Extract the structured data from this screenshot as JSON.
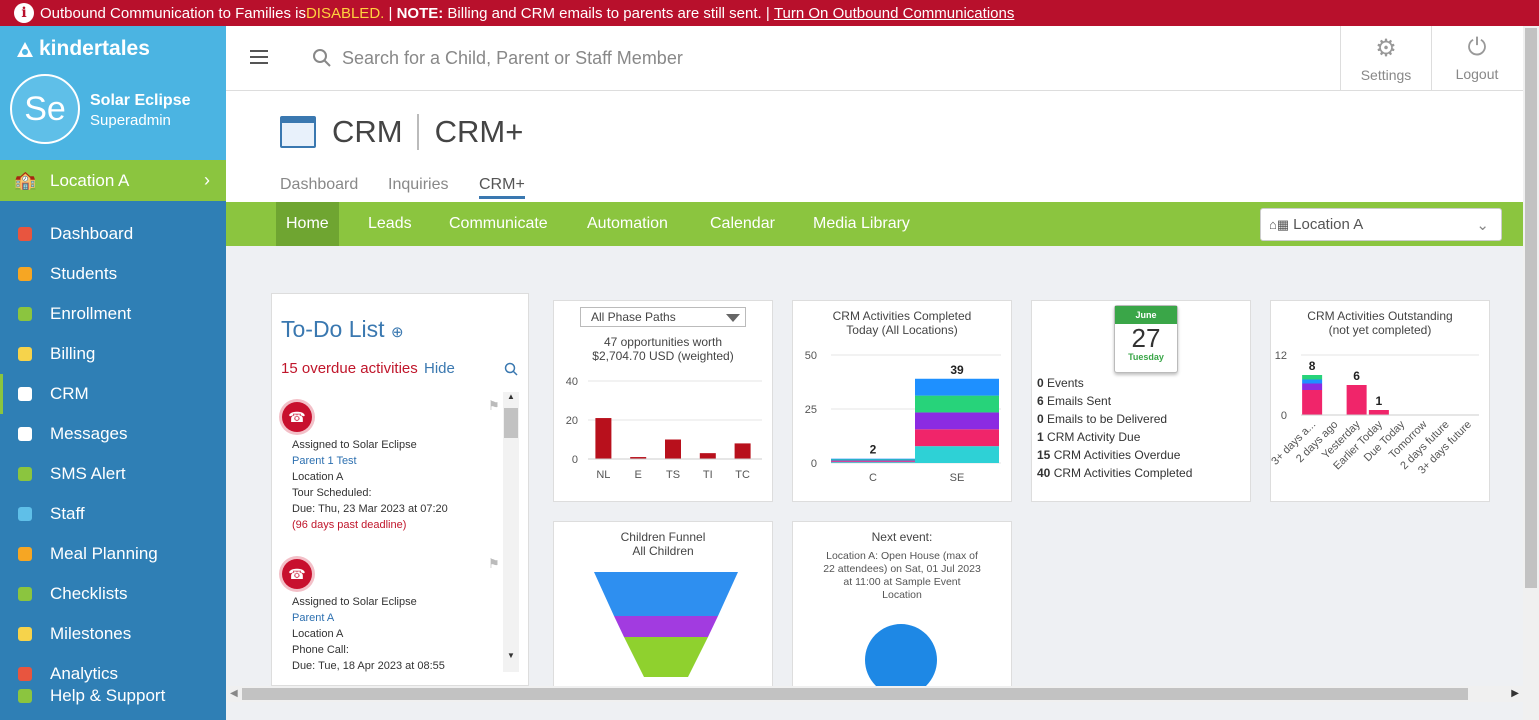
{
  "banner": {
    "part1": "Outbound Communication to Families is ",
    "disabled": "DISABLED.",
    "sep1": " | ",
    "note": "NOTE:",
    "part2": " Billing and CRM emails to parents are still sent. | ",
    "link": "Turn On Outbound Communications"
  },
  "brand": {
    "name": "kindertales"
  },
  "user": {
    "initials": "Se",
    "name": "Solar Eclipse",
    "role": "Superadmin"
  },
  "location": "Location A",
  "nav": [
    {
      "label": "Dashboard",
      "icon": "dashboard-icon",
      "color": "#e8553f"
    },
    {
      "label": "Students",
      "icon": "students-icon",
      "color": "#f6a623"
    },
    {
      "label": "Enrollment",
      "icon": "enrollment-icon",
      "color": "#8bc53f"
    },
    {
      "label": "Billing",
      "icon": "billing-icon",
      "color": "#f6d34b"
    },
    {
      "label": "CRM",
      "icon": "crm-icon",
      "color": "#ffffff"
    },
    {
      "label": "Messages",
      "icon": "messages-icon",
      "color": "#ffffff"
    },
    {
      "label": "SMS Alert",
      "icon": "sms-icon",
      "color": "#8bc53f"
    },
    {
      "label": "Staff",
      "icon": "staff-icon",
      "color": "#5fbfe8"
    },
    {
      "label": "Meal Planning",
      "icon": "meal-icon",
      "color": "#f6a623"
    },
    {
      "label": "Checklists",
      "icon": "checklist-icon",
      "color": "#8bc53f"
    },
    {
      "label": "Milestones",
      "icon": "star-icon",
      "color": "#f6d34b"
    },
    {
      "label": "Analytics",
      "icon": "analytics-icon",
      "color": "#e8553f"
    },
    {
      "label": "Help & Support",
      "icon": "help-icon",
      "color": "#8bc53f"
    }
  ],
  "search": {
    "placeholder": "Search for a Child, Parent or Staff Member"
  },
  "topbuttons": {
    "settings": "Settings",
    "logout": "Logout"
  },
  "page": {
    "title": "CRM",
    "subtitle": "CRM+"
  },
  "tabs": [
    "Dashboard",
    "Inquiries",
    "CRM+"
  ],
  "subnav": [
    "Home",
    "Leads",
    "Communicate",
    "Automation",
    "Calendar",
    "Media Library"
  ],
  "location_select": "Location A",
  "todo": {
    "title": "To-Do List",
    "overdue": "15 overdue activities",
    "hide": "Hide",
    "items": [
      {
        "assigned": "Assigned to Solar Eclipse",
        "parent": "Parent 1 Test",
        "location": "Location A",
        "type": "Tour Scheduled",
        "due": "Due: Thu, 23 Mar 2023 at 07:20",
        "late": "(96 days past deadline)"
      },
      {
        "assigned": "Assigned to Solar Eclipse",
        "parent": "Parent A",
        "location": "Location A",
        "type": "Phone Call",
        "due": "Due: Tue, 18 Apr 2023 at 08:55",
        "late": ""
      }
    ]
  },
  "phase_card": {
    "select": "All Phase Paths",
    "line1": "47 opportunities worth",
    "line2": "$2,704.70 USD (weighted)"
  },
  "completed_card": {
    "title1": "CRM Activities Completed",
    "title2": "Today (All Locations)"
  },
  "calendar_card": {
    "month": "June",
    "day": "27",
    "weekday": "Tuesday",
    "lines": [
      {
        "n": "0",
        "t": " Events"
      },
      {
        "n": "6",
        "t": " Emails Sent"
      },
      {
        "n": "0",
        "t": " Emails to be Delivered"
      },
      {
        "n": "1",
        "t": " CRM Activity Due"
      },
      {
        "n": "15",
        "t": " CRM Activities Overdue"
      },
      {
        "n": "40",
        "t": " CRM Activities Completed"
      }
    ]
  },
  "outstanding_card": {
    "title1": "CRM Activities Outstanding",
    "title2": "(not yet completed)"
  },
  "funnel_card": {
    "title1": "Children Funnel",
    "title2": "All Children"
  },
  "event_card": {
    "title": "Next event:",
    "text": [
      "Location A: Open House (max of",
      "22 attendees) on Sat, 01 Jul 2023",
      "at 11:00 at Sample Event",
      "Location"
    ]
  },
  "chart_data": [
    {
      "type": "bar",
      "categories": [
        "NL",
        "E",
        "TS",
        "TI",
        "TC"
      ],
      "values": [
        21,
        1,
        10,
        3,
        8
      ],
      "ylim": [
        0,
        40
      ],
      "yticks": [
        0,
        20,
        40
      ],
      "color": "#b8101c"
    },
    {
      "type": "bar",
      "stacked": true,
      "categories": [
        "C",
        "SE"
      ],
      "totals": [
        2,
        39
      ],
      "ylim": [
        0,
        50
      ],
      "yticks": [
        0,
        25,
        50
      ],
      "series_colors": [
        "#2ed1d6",
        "#f0256a",
        "#8b2be2",
        "#27d37a",
        "#1e90ff"
      ]
    },
    {
      "type": "bar",
      "stacked": true,
      "categories": [
        "3+ days a...",
        "2 days ago",
        "Yesterday",
        "Earlier Today",
        "Due Today",
        "Tomorrow",
        "2 days future",
        "3+ days future"
      ],
      "values": [
        8,
        0,
        6,
        1,
        0,
        0,
        0,
        0
      ],
      "ylim": [
        0,
        12
      ],
      "yticks": [
        0,
        12
      ],
      "colors": [
        "#f0256a",
        "#8b2be2",
        "#1e90ff",
        "#27d37a"
      ]
    },
    {
      "type": "funnel",
      "stages": [
        "#2e8ff0",
        "#a23be0",
        "#8fd12e"
      ]
    }
  ]
}
